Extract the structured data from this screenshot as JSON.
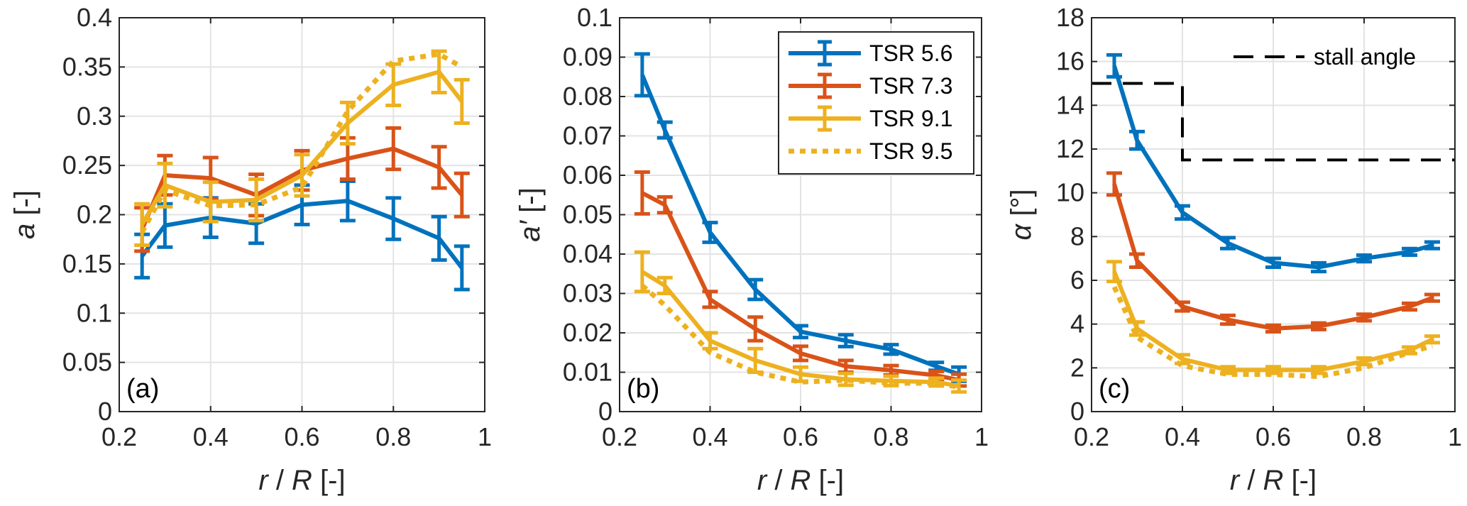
{
  "chart_data": [
    {
      "type": "line",
      "panel_label": "(a)",
      "xlabel_parts": [
        "r",
        " / ",
        "R",
        " [-]"
      ],
      "ylabel_parts": [
        "a",
        " [-]"
      ],
      "xlim": [
        0.2,
        1
      ],
      "ylim": [
        0,
        0.4
      ],
      "xticks": [
        0.2,
        0.4,
        0.6,
        0.8,
        1
      ],
      "xtick_labels": [
        "0.2",
        "0.4",
        "0.6",
        "0.8",
        "1"
      ],
      "yticks": [
        0,
        0.05,
        0.1,
        0.15,
        0.2,
        0.25,
        0.3,
        0.35,
        0.4
      ],
      "ytick_labels": [
        "0",
        "0.05",
        "0.1",
        "0.15",
        "0.2",
        "0.25",
        "0.3",
        "0.35",
        "0.4"
      ],
      "grid": true,
      "x": [
        0.25,
        0.3,
        0.4,
        0.5,
        0.6,
        0.7,
        0.8,
        0.9,
        0.95
      ],
      "series": [
        {
          "name": "TSR 5.6",
          "color": "#0072BD",
          "style": "solid",
          "errorbars": true,
          "values": [
            0.158,
            0.189,
            0.197,
            0.191,
            0.21,
            0.214,
            0.196,
            0.176,
            0.146
          ],
          "err": [
            0.022,
            0.022,
            0.02,
            0.02,
            0.02,
            0.02,
            0.021,
            0.022,
            0.022
          ]
        },
        {
          "name": "TSR 7.3",
          "color": "#D95319",
          "style": "solid",
          "errorbars": true,
          "values": [
            0.185,
            0.24,
            0.237,
            0.22,
            0.245,
            0.257,
            0.267,
            0.248,
            0.22
          ],
          "err": [
            0.022,
            0.02,
            0.021,
            0.021,
            0.02,
            0.021,
            0.021,
            0.021,
            0.022
          ]
        },
        {
          "name": "TSR 9.1",
          "color": "#EDB120",
          "style": "solid",
          "errorbars": true,
          "values": [
            0.19,
            0.23,
            0.213,
            0.215,
            0.24,
            0.293,
            0.332,
            0.345,
            0.315
          ],
          "err": [
            0.021,
            0.022,
            0.02,
            0.021,
            0.021,
            0.021,
            0.021,
            0.021,
            0.022
          ]
        },
        {
          "name": "TSR 9.5",
          "color": "#EDB120",
          "style": "dotted",
          "errorbars": false,
          "values": [
            0.182,
            0.225,
            0.209,
            0.21,
            0.228,
            0.305,
            0.356,
            0.363,
            0.35
          ],
          "err": []
        }
      ]
    },
    {
      "type": "line",
      "panel_label": "(b)",
      "xlabel_parts": [
        "r",
        " / ",
        "R",
        " [-]"
      ],
      "ylabel_parts": [
        "a′",
        " [-]"
      ],
      "xlim": [
        0.2,
        1
      ],
      "ylim": [
        0,
        0.1
      ],
      "xticks": [
        0.2,
        0.4,
        0.6,
        0.8,
        1
      ],
      "xtick_labels": [
        "0.2",
        "0.4",
        "0.6",
        "0.8",
        "1"
      ],
      "yticks": [
        0,
        0.01,
        0.02,
        0.03,
        0.04,
        0.05,
        0.06,
        0.07,
        0.08,
        0.09,
        0.1
      ],
      "ytick_labels": [
        "0",
        "0.01",
        "0.02",
        "0.03",
        "0.04",
        "0.05",
        "0.06",
        "0.07",
        "0.08",
        "0.09",
        "0.1"
      ],
      "grid": true,
      "legend": {
        "placement": "top-right",
        "entries": [
          "TSR 5.6",
          "TSR 7.3",
          "TSR 9.1",
          "TSR 9.5"
        ]
      },
      "x": [
        0.25,
        0.3,
        0.4,
        0.5,
        0.6,
        0.7,
        0.8,
        0.9,
        0.95
      ],
      "series": [
        {
          "name": "TSR 5.6",
          "color": "#0072BD",
          "style": "solid",
          "errorbars": true,
          "values": [
            0.0855,
            0.0715,
            0.0455,
            0.031,
            0.0203,
            0.018,
            0.0158,
            0.0115,
            0.0095
          ],
          "err": [
            0.0053,
            0.002,
            0.0025,
            0.0025,
            0.0015,
            0.0015,
            0.0012,
            0.001,
            0.0018
          ]
        },
        {
          "name": "TSR 7.3",
          "color": "#D95319",
          "style": "solid",
          "errorbars": true,
          "values": [
            0.0555,
            0.0525,
            0.0285,
            0.021,
            0.0148,
            0.0115,
            0.0105,
            0.0092,
            0.008
          ],
          "err": [
            0.0053,
            0.002,
            0.002,
            0.003,
            0.0018,
            0.0015,
            0.0012,
            0.001,
            0.0015
          ]
        },
        {
          "name": "TSR 9.1",
          "color": "#EDB120",
          "style": "solid",
          "errorbars": true,
          "values": [
            0.0355,
            0.032,
            0.018,
            0.013,
            0.0095,
            0.0082,
            0.0078,
            0.0075,
            0.0065
          ],
          "err": [
            0.005,
            0.002,
            0.002,
            0.003,
            0.0018,
            0.0015,
            0.0012,
            0.001,
            0.0015
          ]
        },
        {
          "name": "TSR 9.5",
          "color": "#EDB120",
          "style": "dotted",
          "errorbars": false,
          "values": [
            0.032,
            0.027,
            0.015,
            0.01,
            0.0075,
            0.008,
            0.0072,
            0.0072,
            0.0062
          ],
          "err": []
        }
      ]
    },
    {
      "type": "line",
      "panel_label": "(c)",
      "xlabel_parts": [
        "r",
        " / ",
        "R",
        " [-]"
      ],
      "ylabel_parts": [
        "α",
        " [°]"
      ],
      "xlim": [
        0.2,
        1
      ],
      "ylim": [
        0,
        18
      ],
      "xticks": [
        0.2,
        0.4,
        0.6,
        0.8,
        1
      ],
      "xtick_labels": [
        "0.2",
        "0.4",
        "0.6",
        "0.8",
        "1"
      ],
      "yticks": [
        0,
        2,
        4,
        6,
        8,
        10,
        12,
        14,
        16,
        18
      ],
      "ytick_labels": [
        "0",
        "2",
        "4",
        "6",
        "8",
        "10",
        "12",
        "14",
        "16",
        "18"
      ],
      "grid": true,
      "legend": {
        "placement": "top-right",
        "entries": [
          "stall angle"
        ]
      },
      "x": [
        0.25,
        0.3,
        0.4,
        0.5,
        0.6,
        0.7,
        0.8,
        0.9,
        0.95
      ],
      "stall_angle": {
        "name": "stall angle",
        "color": "#000000",
        "style": "dashed",
        "x": [
          0.2,
          0.4,
          0.4,
          1.0
        ],
        "y": [
          15,
          15,
          11.5,
          11.5
        ]
      },
      "series": [
        {
          "name": "TSR 5.6",
          "color": "#0072BD",
          "style": "solid",
          "errorbars": true,
          "values": [
            15.8,
            12.4,
            9.1,
            7.7,
            6.8,
            6.6,
            7.0,
            7.3,
            7.6
          ],
          "err": [
            0.5,
            0.4,
            0.3,
            0.25,
            0.2,
            0.2,
            0.15,
            0.15,
            0.15
          ]
        },
        {
          "name": "TSR 7.3",
          "color": "#D95319",
          "style": "solid",
          "errorbars": true,
          "values": [
            10.4,
            6.9,
            4.8,
            4.2,
            3.8,
            3.9,
            4.3,
            4.8,
            5.2
          ],
          "err": [
            0.5,
            0.3,
            0.2,
            0.2,
            0.15,
            0.15,
            0.15,
            0.15,
            0.15
          ]
        },
        {
          "name": "TSR 9.1",
          "color": "#EDB120",
          "style": "solid",
          "errorbars": true,
          "values": [
            6.4,
            3.8,
            2.4,
            1.9,
            1.9,
            1.9,
            2.3,
            2.8,
            3.3
          ],
          "err": [
            0.45,
            0.3,
            0.2,
            0.15,
            0.15,
            0.15,
            0.15,
            0.15,
            0.15
          ]
        },
        {
          "name": "TSR 9.5",
          "color": "#EDB120",
          "style": "dotted",
          "errorbars": false,
          "values": [
            5.7,
            3.4,
            2.1,
            1.7,
            1.7,
            1.6,
            2.0,
            2.7,
            3.0
          ],
          "err": []
        }
      ]
    }
  ]
}
